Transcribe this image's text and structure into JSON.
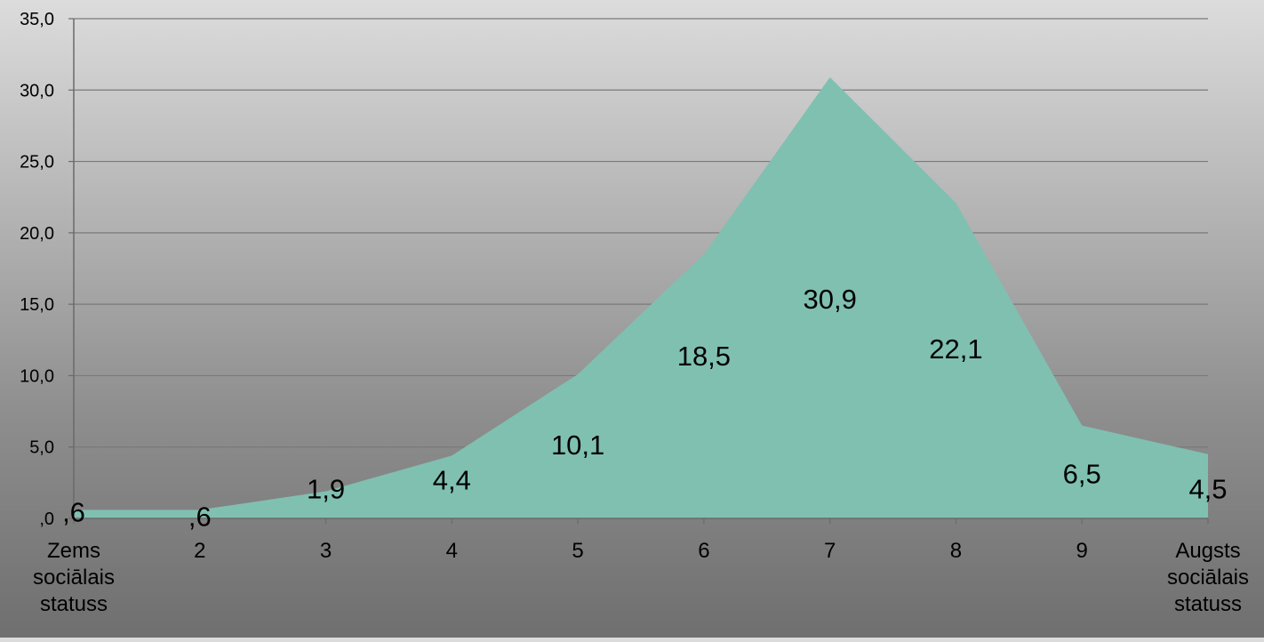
{
  "chart_data": {
    "type": "area",
    "categories": [
      [
        "Zems",
        "sociālais",
        "statuss"
      ],
      [
        "2"
      ],
      [
        "3"
      ],
      [
        "4"
      ],
      [
        "5"
      ],
      [
        "6"
      ],
      [
        "7"
      ],
      [
        "8"
      ],
      [
        "9"
      ],
      [
        "Augsts",
        "sociālais",
        "statuss"
      ]
    ],
    "values": [
      0.6,
      0.6,
      1.9,
      4.4,
      10.1,
      18.5,
      30.9,
      22.1,
      6.5,
      4.5
    ],
    "data_labels": [
      ",6",
      ",6",
      "1,9",
      "4,4",
      "10,1",
      "18,5",
      "30,9",
      "22,1",
      "6,5",
      "4,5"
    ],
    "y_ticks": [
      0,
      5,
      10,
      15,
      20,
      25,
      30,
      35
    ],
    "y_tick_labels": [
      ",0",
      "5,0",
      "10,0",
      "15,0",
      "20,0",
      "25,0",
      "30,0",
      "35,0"
    ],
    "ylim": [
      0,
      35
    ],
    "grid": true,
    "legend": "none",
    "colors": {
      "area_fill": "#80c0b0",
      "gridline": "#7a7a7a",
      "axis": "#6a6a6a",
      "text": "#000000"
    }
  }
}
